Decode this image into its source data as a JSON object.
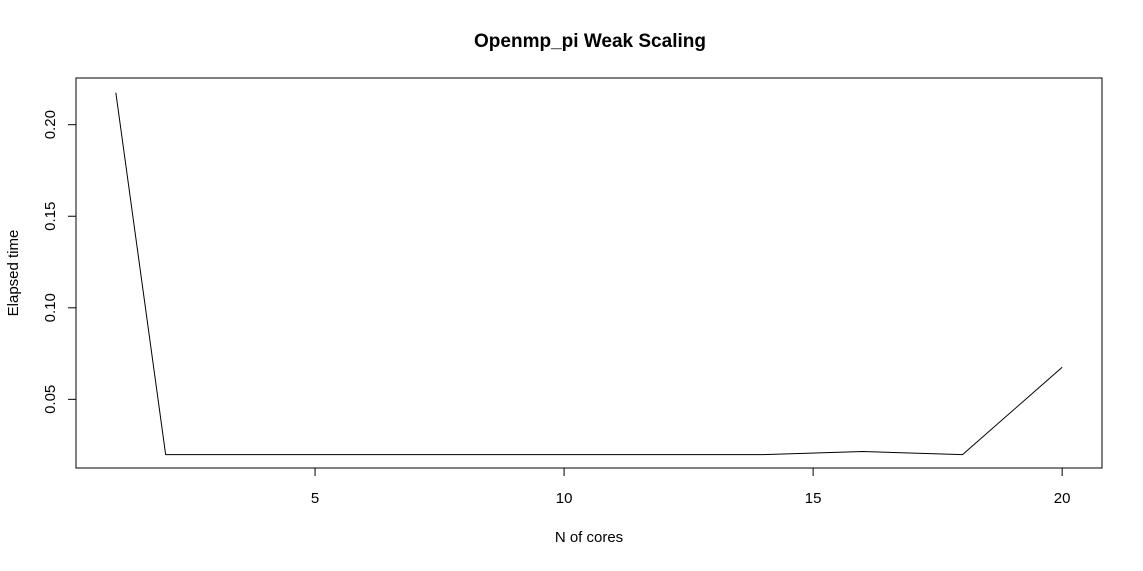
{
  "chart_data": {
    "type": "line",
    "title": "Openmp_pi Weak Scaling",
    "xlabel": "N of cores",
    "ylabel": "Elapsed time",
    "x": [
      1,
      2,
      4,
      6,
      8,
      10,
      12,
      14,
      16,
      18,
      20
    ],
    "series": [
      {
        "values": [
          0.2175,
          0.0198,
          0.0198,
          0.0198,
          0.0198,
          0.0198,
          0.0198,
          0.0198,
          0.0215,
          0.0198,
          0.0675
        ]
      }
    ],
    "xlim": [
      0.2,
      20.8
    ],
    "ylim": [
      0.0125,
      0.2255
    ],
    "x_ticks": [
      5,
      10,
      15,
      20
    ],
    "x_tick_labels": [
      "5",
      "10",
      "15",
      "20"
    ],
    "y_ticks": [
      0.05,
      0.1,
      0.15,
      0.2
    ],
    "y_tick_labels": [
      "0.05",
      "0.10",
      "0.15",
      "0.20"
    ],
    "grid": false,
    "legend": "none",
    "line_color": "#000000"
  }
}
